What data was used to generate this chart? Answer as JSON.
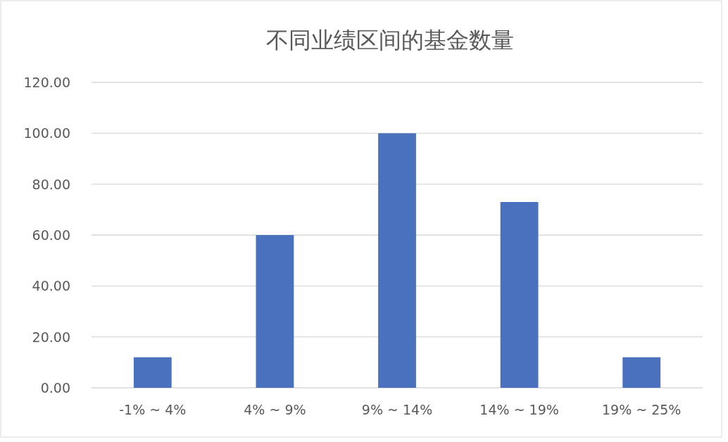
{
  "chart_data": {
    "type": "bar",
    "title": "不同业绩区间的基金数量",
    "categories": [
      "-1% ~ 4%",
      "4% ~ 9%",
      "9% ~ 14%",
      "14% ~ 19%",
      "19% ~ 25%"
    ],
    "values": [
      12,
      60,
      100,
      73,
      12
    ],
    "color": "#4a71bd",
    "ylim": [
      0,
      120
    ],
    "yticks": [
      {
        "value": 0,
        "label": "0.00"
      },
      {
        "value": 20,
        "label": "20.00"
      },
      {
        "value": 40,
        "label": "40.00"
      },
      {
        "value": 60,
        "label": "60.00"
      },
      {
        "value": 80,
        "label": "80.00"
      },
      {
        "value": 100,
        "label": "100.00"
      },
      {
        "value": 120,
        "label": "120.00"
      }
    ],
    "grid": "y"
  }
}
